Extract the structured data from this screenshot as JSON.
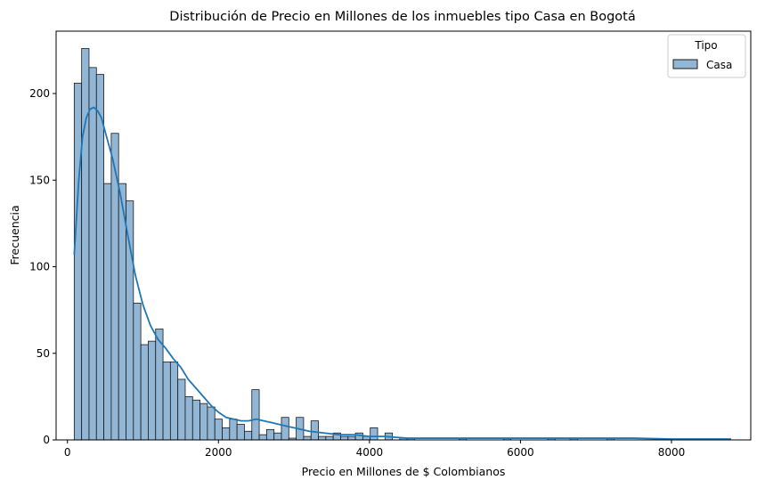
{
  "chart_data": {
    "type": "bar",
    "title": "Distribución de Precio en Millones de los inmuebles tipo Casa en Bogotá",
    "xlabel": "Precio en Millones de $ Colombianos",
    "ylabel": "Frecuencia",
    "xlim": [
      -150,
      9050
    ],
    "ylim": [
      0,
      236
    ],
    "x_ticks": [
      0,
      2000,
      4000,
      6000,
      8000
    ],
    "y_ticks": [
      0,
      50,
      100,
      150,
      200
    ],
    "bin_start": 90,
    "bin_width": 98,
    "counts": [
      206,
      226,
      215,
      211,
      148,
      177,
      148,
      138,
      79,
      55,
      57,
      64,
      45,
      45,
      35,
      25,
      23,
      21,
      19,
      12,
      7,
      12,
      9,
      5,
      29,
      3,
      6,
      4,
      13,
      1,
      13,
      2,
      11,
      2,
      2,
      4,
      2,
      2,
      4,
      2,
      7,
      0,
      4,
      0,
      1,
      1,
      0,
      0,
      0,
      0,
      0,
      0,
      1,
      0,
      0,
      0,
      0,
      0,
      1,
      0,
      0,
      0,
      0,
      0,
      1,
      0,
      0,
      1,
      0,
      0,
      0,
      0,
      1
    ],
    "kde": {
      "x": [
        90,
        150,
        200,
        250,
        300,
        350,
        400,
        450,
        500,
        600,
        700,
        800,
        900,
        1000,
        1100,
        1200,
        1300,
        1400,
        1500,
        1600,
        1700,
        1800,
        1900,
        2000,
        2100,
        2200,
        2300,
        2400,
        2500,
        2600,
        2700,
        2800,
        2900,
        3000,
        3200,
        3400,
        3600,
        3800,
        4000,
        4200,
        4500,
        5000,
        5500,
        6000,
        6500,
        7000,
        7500,
        8000,
        8500,
        8790
      ],
      "y": [
        107,
        150,
        175,
        186,
        191,
        192,
        190,
        186,
        178,
        162,
        142,
        118,
        95,
        78,
        66,
        58,
        53,
        47,
        42,
        35,
        30,
        25,
        20,
        16,
        13,
        12,
        11,
        11,
        12,
        11,
        10,
        9,
        8,
        7,
        5,
        4,
        3,
        3,
        2,
        2,
        1,
        1,
        1,
        1,
        1,
        1,
        1,
        0.5,
        0.5,
        0.5
      ]
    },
    "legend": {
      "title": "Tipo",
      "entries": [
        "Casa"
      ],
      "placement": "top-right"
    },
    "colors": {
      "bar_fill": "#92b6d6",
      "bar_edge": "#1a1a1a",
      "kde_line": "#1f77b4",
      "axes": "#000000"
    }
  }
}
